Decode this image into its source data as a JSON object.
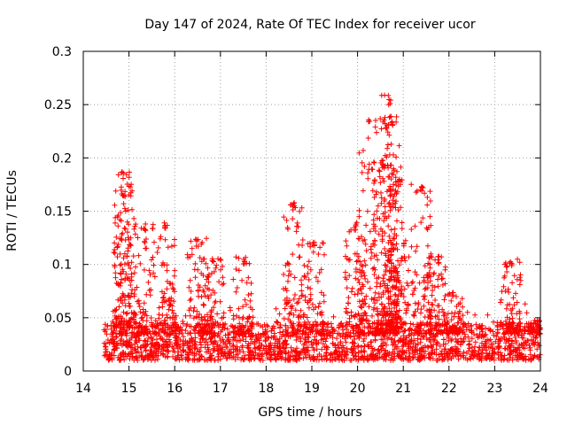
{
  "chart_data": {
    "type": "scatter",
    "title": "Day 147 of 2024, Rate Of TEC Index for receiver ucor",
    "xlabel": "GPS time / hours",
    "ylabel": "ROTI / TECUs",
    "xlim": [
      14,
      24
    ],
    "ylim": [
      0,
      0.3
    ],
    "x_ticks": [
      "14",
      "15",
      "16",
      "17",
      "18",
      "19",
      "20",
      "21",
      "22",
      "23",
      "24"
    ],
    "y_ticks": [
      "0",
      "0.05",
      "0.1",
      "0.15",
      "0.2",
      "0.25",
      "0.3"
    ],
    "grid": true,
    "marker": "plus",
    "series_color": "#ff0000",
    "density_profile_note": "dense band of ROTI values 0.01-0.05 TECUs from 14.45 h to 24 h, with spikes",
    "band": {
      "x_start": 14.45,
      "x_end": 24.0,
      "y_low": 0.01,
      "y_high": 0.045
    },
    "peaks": [
      {
        "x": 14.85,
        "y": 0.187
      },
      {
        "x": 14.9,
        "y": 0.17
      },
      {
        "x": 15.35,
        "y": 0.138
      },
      {
        "x": 15.8,
        "y": 0.14
      },
      {
        "x": 16.5,
        "y": 0.125
      },
      {
        "x": 16.85,
        "y": 0.108
      },
      {
        "x": 17.5,
        "y": 0.108
      },
      {
        "x": 18.6,
        "y": 0.158
      },
      {
        "x": 19.05,
        "y": 0.125
      },
      {
        "x": 19.95,
        "y": 0.14
      },
      {
        "x": 20.25,
        "y": 0.237
      },
      {
        "x": 20.55,
        "y": 0.2
      },
      {
        "x": 20.7,
        "y": 0.259
      },
      {
        "x": 20.75,
        "y": 0.24
      },
      {
        "x": 20.9,
        "y": 0.18
      },
      {
        "x": 21.4,
        "y": 0.177
      },
      {
        "x": 21.75,
        "y": 0.108
      },
      {
        "x": 22.1,
        "y": 0.075
      },
      {
        "x": 23.35,
        "y": 0.105
      },
      {
        "x": 23.95,
        "y": 0.048
      }
    ]
  }
}
